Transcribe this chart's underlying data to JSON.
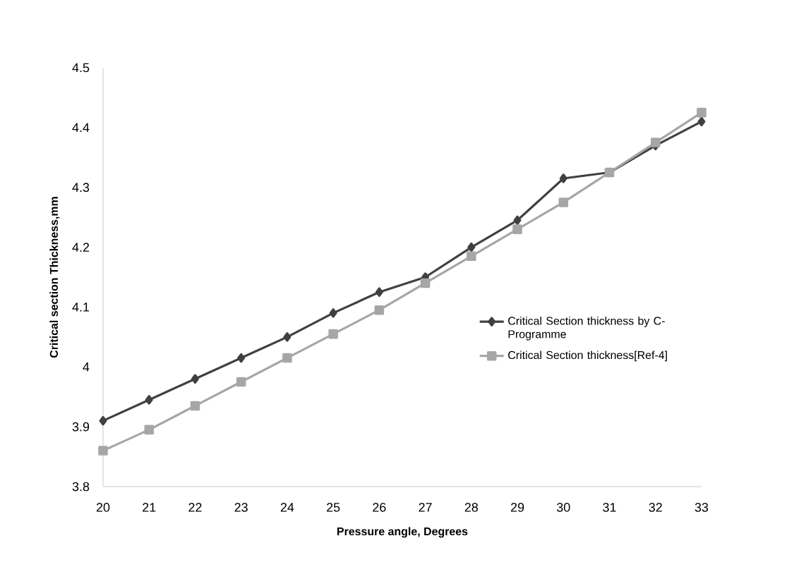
{
  "chart_data": {
    "type": "line",
    "xlabel": "Pressure angle, Degrees",
    "ylabel": "Critical section Thickness,mm",
    "x": [
      20,
      21,
      22,
      23,
      24,
      25,
      26,
      27,
      28,
      29,
      30,
      31,
      32,
      33
    ],
    "xlim": [
      20,
      33
    ],
    "xticks": [
      20,
      21,
      22,
      23,
      24,
      25,
      26,
      27,
      28,
      29,
      30,
      31,
      32,
      33
    ],
    "ylim": [
      3.8,
      4.5
    ],
    "yticks": [
      3.8,
      3.9,
      {
        "value": 4.0,
        "label": "4"
      },
      4.1,
      4.2,
      4.3,
      4.4,
      4.5
    ],
    "grid": false,
    "legend": "right",
    "line_style": "solid",
    "series": [
      {
        "name": "Critical Section thickness by C-Programme",
        "color": "#404040",
        "marker": "diamond",
        "values": [
          3.91,
          3.945,
          3.98,
          4.015,
          4.05,
          4.09,
          4.125,
          4.15,
          4.2,
          4.245,
          4.315,
          4.325,
          4.37,
          4.41
        ]
      },
      {
        "name": "Critical Section thickness[Ref-4]",
        "color": "#a6a6a6",
        "marker": "square",
        "values": [
          3.86,
          3.895,
          3.935,
          3.975,
          4.015,
          4.055,
          4.095,
          4.14,
          4.185,
          4.23,
          4.275,
          4.325,
          4.375,
          4.425
        ]
      }
    ]
  }
}
